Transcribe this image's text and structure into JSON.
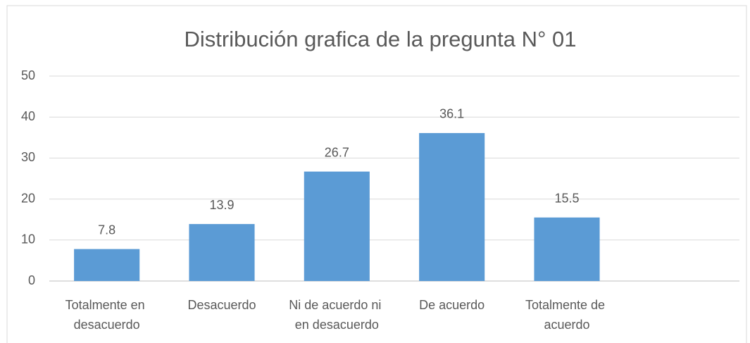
{
  "chart_data": {
    "type": "bar",
    "title": "Distribución grafica de la pregunta N° 01",
    "categories": [
      "Totalmente en desacuerdo",
      "Desacuerdo",
      "Ni de acuerdo ni en desacuerdo",
      "De acuerdo",
      "Totalmente de acuerdo",
      null
    ],
    "values": [
      7.8,
      13.9,
      26.7,
      36.1,
      15.5,
      null
    ],
    "color": "#5b9bd5",
    "ylim": [
      0,
      50
    ],
    "yticks": [
      0,
      10,
      20,
      30,
      40,
      50
    ],
    "grid": true
  }
}
